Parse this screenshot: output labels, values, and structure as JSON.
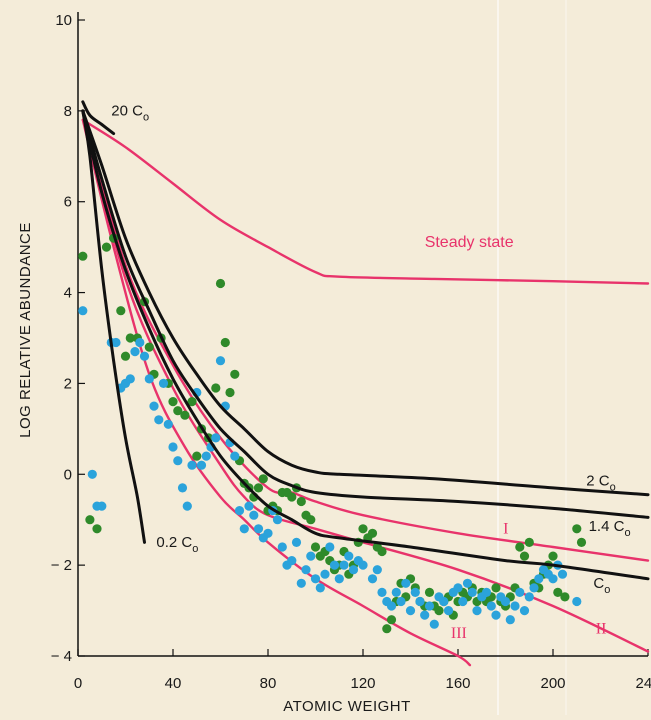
{
  "chart_data": {
    "type": "scatter",
    "xlabel": "ATOMIC WEIGHT",
    "ylabel": "LOG RELATIVE ABUNDANCE",
    "xlim": [
      0,
      240
    ],
    "ylim": [
      -4,
      10
    ],
    "x_ticks": [
      "0",
      "40",
      "80",
      "120",
      "160",
      "200",
      "240"
    ],
    "y_ticks": [
      "10",
      "8",
      "6",
      "4",
      "2",
      "0",
      "− 2",
      "− 4"
    ],
    "grid": false,
    "colors": {
      "background": "#f4ecd9",
      "model_line": "#111111",
      "pink_line": "#e8336b",
      "green_points": "#2f8a2a",
      "blue_points": "#2ba3db"
    },
    "curves": [
      {
        "name": "20 C0",
        "color": "#111111",
        "points": [
          [
            2,
            8.2
          ],
          [
            5,
            7.9
          ],
          [
            10,
            7.7
          ],
          [
            15,
            7.5
          ]
        ]
      },
      {
        "name": "0.2 C0",
        "color": "#111111",
        "points": [
          [
            2,
            8.0
          ],
          [
            5,
            7.0
          ],
          [
            10,
            4.5
          ],
          [
            15,
            2.5
          ],
          [
            20,
            0.8
          ],
          [
            25,
            -0.5
          ],
          [
            28,
            -1.5
          ]
        ]
      },
      {
        "name": "2 C0",
        "color": "#111111",
        "points": [
          [
            2,
            8.0
          ],
          [
            10,
            6.8
          ],
          [
            20,
            5.2
          ],
          [
            30,
            4.0
          ],
          [
            40,
            3.0
          ],
          [
            50,
            2.2
          ],
          [
            60,
            1.5
          ],
          [
            70,
            1.0
          ],
          [
            80,
            0.5
          ],
          [
            90,
            0.2
          ],
          [
            100,
            0.05
          ],
          [
            110,
            0.0
          ],
          [
            150,
            -0.1
          ],
          [
            200,
            -0.3
          ],
          [
            240,
            -0.45
          ]
        ]
      },
      {
        "name": "1.4 C0",
        "color": "#111111",
        "points": [
          [
            2,
            8.0
          ],
          [
            10,
            6.5
          ],
          [
            20,
            4.8
          ],
          [
            30,
            3.6
          ],
          [
            40,
            2.5
          ],
          [
            50,
            1.7
          ],
          [
            60,
            1.0
          ],
          [
            70,
            0.5
          ],
          [
            80,
            0.0
          ],
          [
            90,
            -0.25
          ],
          [
            100,
            -0.4
          ],
          [
            120,
            -0.5
          ],
          [
            160,
            -0.6
          ],
          [
            200,
            -0.75
          ],
          [
            240,
            -0.95
          ]
        ]
      },
      {
        "name": "C0",
        "color": "#111111",
        "points": [
          [
            2,
            8.0
          ],
          [
            10,
            6.2
          ],
          [
            20,
            4.5
          ],
          [
            30,
            3.2
          ],
          [
            40,
            2.1
          ],
          [
            50,
            1.2
          ],
          [
            60,
            0.4
          ],
          [
            70,
            -0.2
          ],
          [
            80,
            -0.7
          ],
          [
            90,
            -1.0
          ],
          [
            100,
            -1.3
          ],
          [
            110,
            -1.4
          ],
          [
            140,
            -1.6
          ],
          [
            180,
            -1.9
          ],
          [
            200,
            -2.0
          ],
          [
            240,
            -2.3
          ]
        ]
      },
      {
        "name": "Steady state",
        "color": "#e8336b",
        "points": [
          [
            2,
            7.8
          ],
          [
            20,
            7.2
          ],
          [
            40,
            6.4
          ],
          [
            60,
            5.6
          ],
          [
            80,
            5.0
          ],
          [
            100,
            4.45
          ],
          [
            110,
            4.35
          ],
          [
            150,
            4.3
          ],
          [
            200,
            4.25
          ],
          [
            240,
            4.2
          ]
        ]
      },
      {
        "name": "I",
        "color": "#e8336b",
        "points": [
          [
            2,
            8.0
          ],
          [
            20,
            4.6
          ],
          [
            40,
            2.4
          ],
          [
            60,
            0.8
          ],
          [
            80,
            -0.3
          ],
          [
            90,
            -0.4
          ],
          [
            100,
            -0.6
          ],
          [
            120,
            -0.9
          ],
          [
            160,
            -1.3
          ],
          [
            200,
            -1.6
          ],
          [
            240,
            -1.9
          ]
        ]
      },
      {
        "name": "II",
        "color": "#e8336b",
        "points": [
          [
            2,
            8.0
          ],
          [
            20,
            4.3
          ],
          [
            40,
            1.9
          ],
          [
            60,
            0.2
          ],
          [
            70,
            -0.5
          ],
          [
            80,
            -0.9
          ],
          [
            100,
            -1.2
          ],
          [
            120,
            -1.5
          ],
          [
            160,
            -2.1
          ],
          [
            200,
            -2.9
          ],
          [
            240,
            -3.9
          ]
        ]
      },
      {
        "name": "III",
        "color": "#e8336b",
        "points": [
          [
            2,
            7.8
          ],
          [
            15,
            5.0
          ],
          [
            30,
            2.2
          ],
          [
            45,
            0.6
          ],
          [
            60,
            -0.5
          ],
          [
            70,
            -1.0
          ],
          [
            80,
            -1.5
          ],
          [
            100,
            -2.3
          ],
          [
            120,
            -2.9
          ],
          [
            140,
            -3.5
          ],
          [
            160,
            -4.0
          ],
          [
            165,
            -4.2
          ]
        ]
      }
    ],
    "series": [
      {
        "color": "#2f8a2a",
        "points": [
          [
            2,
            4.8
          ],
          [
            5,
            -1.0
          ],
          [
            8,
            -1.2
          ],
          [
            12,
            5.0
          ],
          [
            15,
            5.2
          ],
          [
            18,
            3.6
          ],
          [
            20,
            2.6
          ],
          [
            22,
            3.0
          ],
          [
            25,
            3.0
          ],
          [
            28,
            3.8
          ],
          [
            30,
            2.8
          ],
          [
            32,
            2.2
          ],
          [
            35,
            3.0
          ],
          [
            38,
            2.0
          ],
          [
            40,
            1.6
          ],
          [
            42,
            1.4
          ],
          [
            45,
            1.3
          ],
          [
            48,
            1.6
          ],
          [
            50,
            0.4
          ],
          [
            52,
            1.0
          ],
          [
            55,
            0.8
          ],
          [
            58,
            1.9
          ],
          [
            60,
            4.2
          ],
          [
            62,
            2.9
          ],
          [
            64,
            1.8
          ],
          [
            66,
            2.2
          ],
          [
            68,
            0.3
          ],
          [
            70,
            -0.2
          ],
          [
            72,
            -0.3
          ],
          [
            74,
            -0.5
          ],
          [
            76,
            -0.3
          ],
          [
            78,
            -0.1
          ],
          [
            80,
            -0.8
          ],
          [
            82,
            -0.7
          ],
          [
            84,
            -0.8
          ],
          [
            86,
            -0.4
          ],
          [
            88,
            -0.4
          ],
          [
            90,
            -0.5
          ],
          [
            92,
            -0.3
          ],
          [
            94,
            -0.6
          ],
          [
            96,
            -0.9
          ],
          [
            98,
            -1.0
          ],
          [
            100,
            -1.6
          ],
          [
            102,
            -1.8
          ],
          [
            104,
            -1.7
          ],
          [
            106,
            -1.9
          ],
          [
            108,
            -2.1
          ],
          [
            110,
            -2.0
          ],
          [
            112,
            -1.7
          ],
          [
            114,
            -2.2
          ],
          [
            116,
            -2.0
          ],
          [
            118,
            -1.5
          ],
          [
            120,
            -1.2
          ],
          [
            122,
            -1.4
          ],
          [
            124,
            -1.3
          ],
          [
            126,
            -1.6
          ],
          [
            128,
            -1.7
          ],
          [
            130,
            -3.4
          ],
          [
            132,
            -3.2
          ],
          [
            134,
            -2.8
          ],
          [
            136,
            -2.4
          ],
          [
            138,
            -2.7
          ],
          [
            140,
            -2.3
          ],
          [
            142,
            -2.5
          ],
          [
            144,
            -2.8
          ],
          [
            146,
            -2.9
          ],
          [
            148,
            -2.6
          ],
          [
            150,
            -2.9
          ],
          [
            152,
            -3.0
          ],
          [
            154,
            -2.8
          ],
          [
            156,
            -2.7
          ],
          [
            158,
            -3.1
          ],
          [
            160,
            -2.8
          ],
          [
            162,
            -2.6
          ],
          [
            164,
            -2.7
          ],
          [
            166,
            -2.5
          ],
          [
            168,
            -2.8
          ],
          [
            170,
            -2.6
          ],
          [
            172,
            -2.8
          ],
          [
            174,
            -2.7
          ],
          [
            176,
            -2.5
          ],
          [
            178,
            -2.8
          ],
          [
            180,
            -2.9
          ],
          [
            182,
            -2.7
          ],
          [
            184,
            -2.5
          ],
          [
            186,
            -1.6
          ],
          [
            188,
            -1.8
          ],
          [
            190,
            -1.5
          ],
          [
            192,
            -2.4
          ],
          [
            194,
            -2.5
          ],
          [
            196,
            -2.2
          ],
          [
            198,
            -2.0
          ],
          [
            200,
            -1.8
          ],
          [
            202,
            -2.6
          ],
          [
            205,
            -2.7
          ],
          [
            210,
            -1.2
          ],
          [
            212,
            -1.5
          ]
        ]
      },
      {
        "color": "#2ba3db",
        "points": [
          [
            2,
            3.6
          ],
          [
            6,
            0.0
          ],
          [
            8,
            -0.7
          ],
          [
            10,
            -0.7
          ],
          [
            14,
            2.9
          ],
          [
            16,
            2.9
          ],
          [
            18,
            1.9
          ],
          [
            20,
            2.0
          ],
          [
            22,
            2.1
          ],
          [
            24,
            2.7
          ],
          [
            26,
            2.9
          ],
          [
            28,
            2.6
          ],
          [
            30,
            2.1
          ],
          [
            32,
            1.5
          ],
          [
            34,
            1.2
          ],
          [
            36,
            2.0
          ],
          [
            38,
            1.1
          ],
          [
            40,
            0.6
          ],
          [
            42,
            0.3
          ],
          [
            44,
            -0.3
          ],
          [
            46,
            -0.7
          ],
          [
            48,
            0.2
          ],
          [
            50,
            1.8
          ],
          [
            52,
            0.2
          ],
          [
            54,
            0.4
          ],
          [
            56,
            0.6
          ],
          [
            58,
            0.8
          ],
          [
            60,
            2.5
          ],
          [
            62,
            1.5
          ],
          [
            64,
            0.7
          ],
          [
            66,
            0.4
          ],
          [
            68,
            -0.8
          ],
          [
            70,
            -1.2
          ],
          [
            72,
            -0.7
          ],
          [
            74,
            -0.9
          ],
          [
            76,
            -1.2
          ],
          [
            78,
            -1.4
          ],
          [
            80,
            -1.3
          ],
          [
            82,
            -0.8
          ],
          [
            84,
            -1.0
          ],
          [
            86,
            -1.6
          ],
          [
            88,
            -2.0
          ],
          [
            90,
            -1.9
          ],
          [
            92,
            -1.5
          ],
          [
            94,
            -2.4
          ],
          [
            96,
            -2.1
          ],
          [
            98,
            -1.8
          ],
          [
            100,
            -2.3
          ],
          [
            102,
            -2.5
          ],
          [
            104,
            -2.2
          ],
          [
            106,
            -1.6
          ],
          [
            108,
            -2.0
          ],
          [
            110,
            -2.3
          ],
          [
            112,
            -2.0
          ],
          [
            114,
            -1.8
          ],
          [
            116,
            -2.1
          ],
          [
            118,
            -1.9
          ],
          [
            120,
            -2.0
          ],
          [
            124,
            -2.3
          ],
          [
            126,
            -2.1
          ],
          [
            128,
            -2.6
          ],
          [
            130,
            -2.8
          ],
          [
            132,
            -2.9
          ],
          [
            134,
            -2.6
          ],
          [
            136,
            -2.8
          ],
          [
            138,
            -2.4
          ],
          [
            140,
            -3.0
          ],
          [
            142,
            -2.6
          ],
          [
            144,
            -2.8
          ],
          [
            146,
            -3.1
          ],
          [
            148,
            -2.9
          ],
          [
            150,
            -3.3
          ],
          [
            152,
            -2.7
          ],
          [
            154,
            -2.8
          ],
          [
            156,
            -3.0
          ],
          [
            158,
            -2.6
          ],
          [
            160,
            -2.5
          ],
          [
            162,
            -2.8
          ],
          [
            164,
            -2.4
          ],
          [
            166,
            -2.6
          ],
          [
            168,
            -3.0
          ],
          [
            170,
            -2.7
          ],
          [
            172,
            -2.6
          ],
          [
            174,
            -2.9
          ],
          [
            176,
            -3.1
          ],
          [
            178,
            -2.7
          ],
          [
            180,
            -2.8
          ],
          [
            182,
            -3.2
          ],
          [
            184,
            -2.9
          ],
          [
            186,
            -2.6
          ],
          [
            188,
            -3.0
          ],
          [
            190,
            -2.7
          ],
          [
            192,
            -2.5
          ],
          [
            194,
            -2.3
          ],
          [
            196,
            -2.1
          ],
          [
            198,
            -2.2
          ],
          [
            200,
            -2.3
          ],
          [
            202,
            -2.0
          ],
          [
            204,
            -2.2
          ],
          [
            210,
            -2.8
          ]
        ]
      }
    ],
    "annotations": [
      {
        "text": "20 C",
        "sub": "o",
        "x": 14,
        "y": 7.9
      },
      {
        "text": "Steady state",
        "x": 146,
        "y": 5.0
      },
      {
        "text": "2 C",
        "sub": "o",
        "x": 214,
        "y": -0.25
      },
      {
        "text": "1.4 C",
        "sub": "o",
        "x": 215,
        "y": -1.25
      },
      {
        "text": "C",
        "sub": "o",
        "x": 217,
        "y": -2.5
      },
      {
        "text": "0.2 C",
        "sub": "o",
        "x": 33,
        "y": -1.6
      },
      {
        "text": "I",
        "x": 179,
        "y": -1.3
      },
      {
        "text": "II",
        "x": 218,
        "y": -3.5
      },
      {
        "text": "III",
        "x": 157,
        "y": -3.6
      }
    ]
  }
}
